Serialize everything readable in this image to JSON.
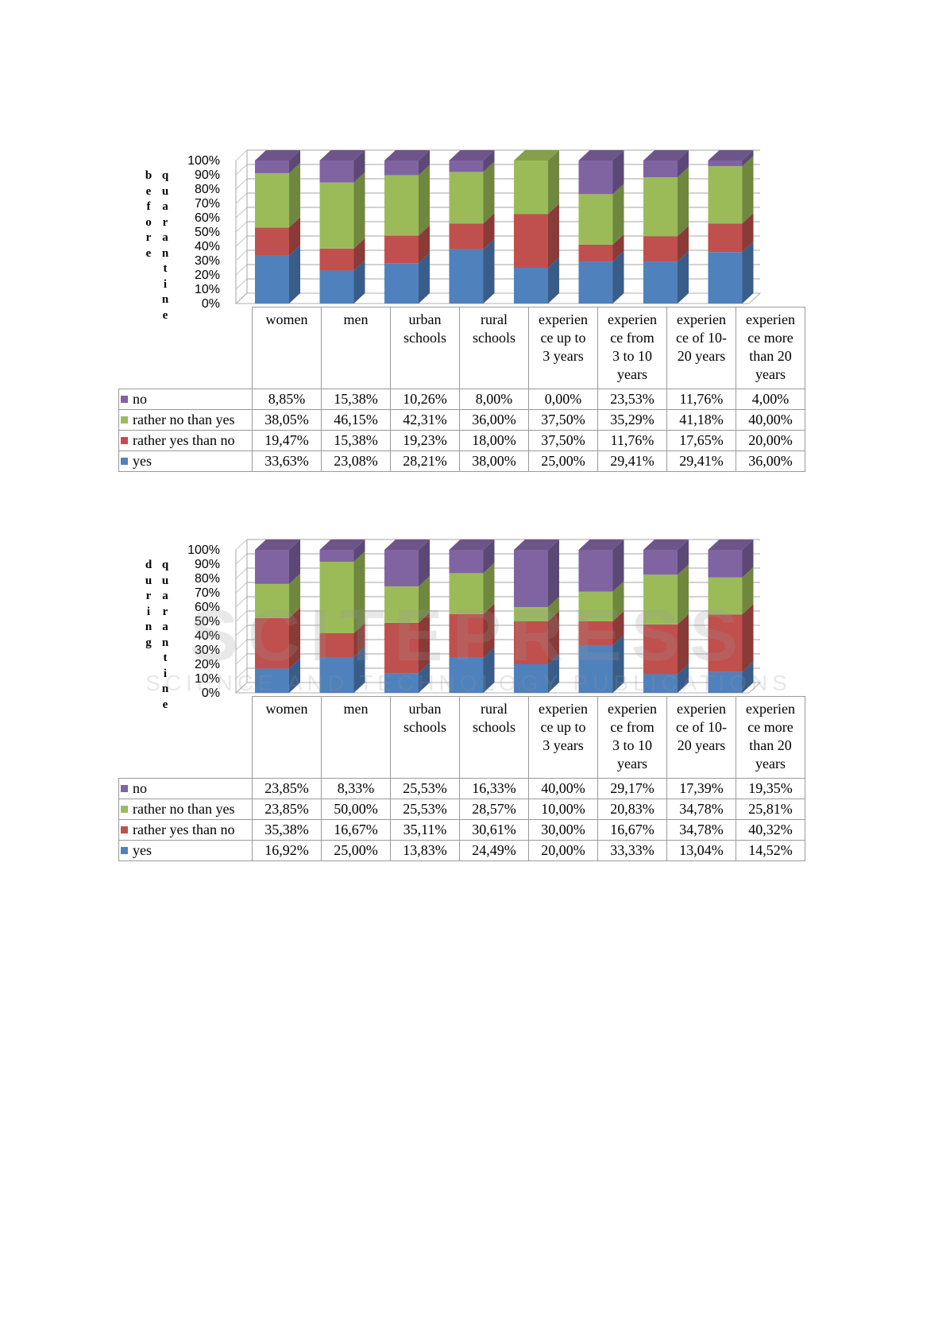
{
  "colors": {
    "yes": "#4f81bd",
    "rather_yes_than_no": "#c0504d",
    "rather_no_than_yes": "#9bbb59",
    "no": "#8064a2"
  },
  "chart_data": [
    {
      "type": "bar",
      "stacked": true,
      "title_vertical": "before quarantine",
      "title_vertical_col1": [
        "b",
        "e",
        "f",
        "o",
        "r",
        "e"
      ],
      "title_vertical_col2": [
        "q",
        "u",
        "a",
        "r",
        "a",
        "n",
        "t",
        "i",
        "n",
        "e"
      ],
      "yticks": [
        "100%",
        "90%",
        "80%",
        "70%",
        "60%",
        "50%",
        "40%",
        "30%",
        "20%",
        "10%",
        "0%"
      ],
      "ylim": [
        0,
        100
      ],
      "categories": [
        "women",
        "men",
        "urban schools",
        "rural schools",
        "experien ce up to 3 years",
        "experien ce from 3 to 10 years",
        "experien ce of 10-20 years",
        "experien ce more than 20 years"
      ],
      "category_lines": [
        [
          "women"
        ],
        [
          "men"
        ],
        [
          "urban",
          "schools"
        ],
        [
          "rural",
          "schools"
        ],
        [
          "experien",
          "ce up to",
          "3 years"
        ],
        [
          "experien",
          "ce from",
          "3 to 10",
          "years"
        ],
        [
          "experien",
          "ce of 10-",
          "20 years"
        ],
        [
          "experien",
          "ce more",
          "than 20",
          "years"
        ]
      ],
      "series": [
        {
          "name": "no",
          "key": "no",
          "values": [
            8.85,
            15.38,
            10.26,
            8.0,
            0.0,
            23.53,
            11.76,
            4.0
          ],
          "labels": [
            "8,85%",
            "15,38%",
            "10,26%",
            "8,00%",
            "0,00%",
            "23,53%",
            "11,76%",
            "4,00%"
          ]
        },
        {
          "name": "rather no than yes",
          "key": "rather_no_than_yes",
          "values": [
            38.05,
            46.15,
            42.31,
            36.0,
            37.5,
            35.29,
            41.18,
            40.0
          ],
          "labels": [
            "38,05%",
            "46,15%",
            "42,31%",
            "36,00%",
            "37,50%",
            "35,29%",
            "41,18%",
            "40,00%"
          ]
        },
        {
          "name": "rather yes than no",
          "key": "rather_yes_than_no",
          "values": [
            19.47,
            15.38,
            19.23,
            18.0,
            37.5,
            11.76,
            17.65,
            20.0
          ],
          "labels": [
            "19,47%",
            "15,38%",
            "19,23%",
            "18,00%",
            "37,50%",
            "11,76%",
            "17,65%",
            "20,00%"
          ]
        },
        {
          "name": "yes",
          "key": "yes",
          "values": [
            33.63,
            23.08,
            28.21,
            38.0,
            25.0,
            29.41,
            29.41,
            36.0
          ],
          "labels": [
            "33,63%",
            "23,08%",
            "28,21%",
            "38,00%",
            "25,00%",
            "29,41%",
            "29,41%",
            "36,00%"
          ]
        }
      ]
    },
    {
      "type": "bar",
      "stacked": true,
      "title_vertical": "during quarantine",
      "title_vertical_col1": [
        "d",
        "u",
        "r",
        "i",
        "n",
        "g"
      ],
      "title_vertical_col2": [
        "q",
        "u",
        "a",
        "r",
        "a",
        "n",
        "t",
        "i",
        "n",
        "e"
      ],
      "yticks": [
        "100%",
        "90%",
        "80%",
        "70%",
        "60%",
        "50%",
        "40%",
        "30%",
        "20%",
        "10%",
        "0%"
      ],
      "ylim": [
        0,
        100
      ],
      "categories": [
        "women",
        "men",
        "urban schools",
        "rural schools",
        "experien ce up to 3 years",
        "experien ce from 3 to 10 years",
        "experien ce of 10-20 years",
        "experien ce more than 20 years"
      ],
      "category_lines": [
        [
          "women"
        ],
        [
          "men"
        ],
        [
          "urban",
          "schools"
        ],
        [
          "rural",
          "schools"
        ],
        [
          "experien",
          "ce up to",
          "3 years"
        ],
        [
          "experien",
          "ce from",
          "3 to 10",
          "years"
        ],
        [
          "experien",
          "ce of 10-",
          "20 years"
        ],
        [
          "experien",
          "ce more",
          "than 20",
          "years"
        ]
      ],
      "series": [
        {
          "name": "no",
          "key": "no",
          "values": [
            23.85,
            8.33,
            25.53,
            16.33,
            40.0,
            29.17,
            17.39,
            19.35
          ],
          "labels": [
            "23,85%",
            "8,33%",
            "25,53%",
            "16,33%",
            "40,00%",
            "29,17%",
            "17,39%",
            "19,35%"
          ]
        },
        {
          "name": "rather no than yes",
          "key": "rather_no_than_yes",
          "values": [
            23.85,
            50.0,
            25.53,
            28.57,
            10.0,
            20.83,
            34.78,
            25.81
          ],
          "labels": [
            "23,85%",
            "50,00%",
            "25,53%",
            "28,57%",
            "10,00%",
            "20,83%",
            "34,78%",
            "25,81%"
          ]
        },
        {
          "name": "rather yes than no",
          "key": "rather_yes_than_no",
          "values": [
            35.38,
            16.67,
            35.11,
            30.61,
            30.0,
            16.67,
            34.78,
            40.32
          ],
          "labels": [
            "35,38%",
            "16,67%",
            "35,11%",
            "30,61%",
            "30,00%",
            "16,67%",
            "34,78%",
            "40,32%"
          ]
        },
        {
          "name": "yes",
          "key": "yes",
          "values": [
            16.92,
            25.0,
            13.83,
            24.49,
            20.0,
            33.33,
            13.04,
            14.52
          ],
          "labels": [
            "16,92%",
            "25,00%",
            "13,83%",
            "24,49%",
            "20,00%",
            "33,33%",
            "13,04%",
            "14,52%"
          ]
        }
      ]
    }
  ],
  "watermark": {
    "main": "SCITEPRESS",
    "sub": "SCIENCE AND TECHNOLOGY PUBLICATIONS"
  }
}
